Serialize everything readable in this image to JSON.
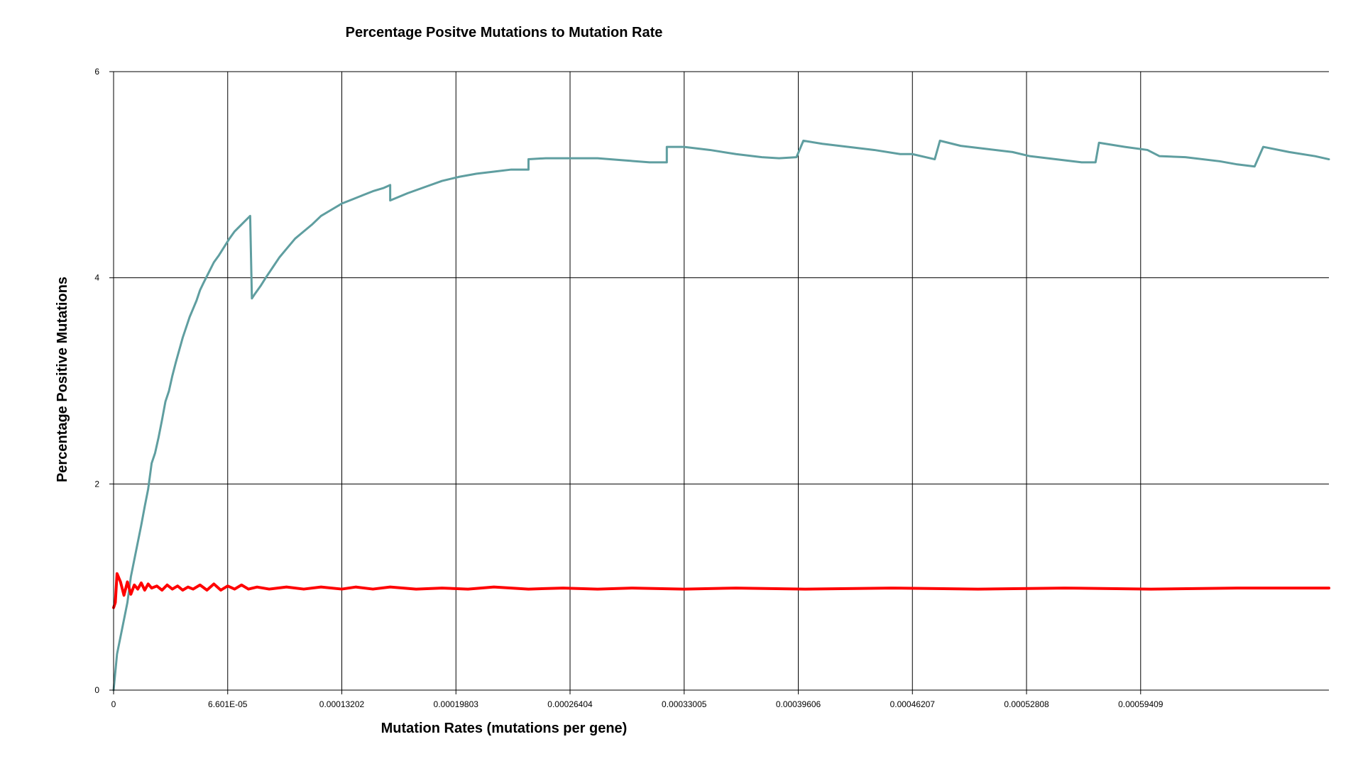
{
  "chart_data": {
    "type": "line",
    "title": "Percentage Positve Mutations to Mutation Rate",
    "xlabel": "Mutation Rates (mutations per gene)",
    "ylabel": "Percentage Positive Mutations",
    "xlim": [
      0,
      0.000703
    ],
    "ylim": [
      0,
      6
    ],
    "grid": true,
    "x_ticks": [
      {
        "value": 0,
        "label": "0"
      },
      {
        "value": 6.601e-05,
        "label": "6.601E-05"
      },
      {
        "value": 0.00013202,
        "label": "0.00013202"
      },
      {
        "value": 0.00019803,
        "label": "0.00019803"
      },
      {
        "value": 0.00026404,
        "label": "0.00026404"
      },
      {
        "value": 0.00033005,
        "label": "0.00033005"
      },
      {
        "value": 0.00039606,
        "label": "0.00039606"
      },
      {
        "value": 0.00046207,
        "label": "0.00046207"
      },
      {
        "value": 0.00052808,
        "label": "0.00052808"
      },
      {
        "value": 0.00059409,
        "label": "0.00059409"
      }
    ],
    "y_ticks": [
      {
        "value": 0,
        "label": "0"
      },
      {
        "value": 2,
        "label": "2"
      },
      {
        "value": 4,
        "label": "4"
      },
      {
        "value": 6,
        "label": "6"
      }
    ],
    "series": [
      {
        "color": "#5f9ea0",
        "points": [
          [
            0,
            0.0
          ],
          [
            2e-06,
            0.35
          ],
          [
            5e-06,
            0.6
          ],
          [
            8e-06,
            0.85
          ],
          [
            1e-05,
            1.1
          ],
          [
            1.3e-05,
            1.35
          ],
          [
            1.6e-05,
            1.6
          ],
          [
            1.8e-05,
            1.78
          ],
          [
            2e-05,
            1.95
          ],
          [
            2.2e-05,
            2.2
          ],
          [
            2.4e-05,
            2.3
          ],
          [
            2.6e-05,
            2.45
          ],
          [
            2.8e-05,
            2.62
          ],
          [
            3e-05,
            2.8
          ],
          [
            3.2e-05,
            2.9
          ],
          [
            3.4e-05,
            3.05
          ],
          [
            3.6e-05,
            3.18
          ],
          [
            3.8e-05,
            3.3
          ],
          [
            4e-05,
            3.42
          ],
          [
            4.2e-05,
            3.52
          ],
          [
            4.4e-05,
            3.62
          ],
          [
            4.6e-05,
            3.7
          ],
          [
            4.8e-05,
            3.78
          ],
          [
            5e-05,
            3.88
          ],
          [
            5.2e-05,
            3.95
          ],
          [
            5.5e-05,
            4.05
          ],
          [
            5.8e-05,
            4.15
          ],
          [
            6.1e-05,
            4.22
          ],
          [
            6.4e-05,
            4.3
          ],
          [
            6.7e-05,
            4.38
          ],
          [
            7e-05,
            4.45
          ],
          [
            7.3e-05,
            4.5
          ],
          [
            7.6e-05,
            4.55
          ],
          [
            7.9e-05,
            4.6
          ],
          [
            8e-05,
            3.8
          ],
          [
            8.2e-05,
            3.85
          ],
          [
            8.5e-05,
            3.92
          ],
          [
            8.8e-05,
            4.0
          ],
          [
            9.2e-05,
            4.1
          ],
          [
            9.6e-05,
            4.2
          ],
          [
            0.0001,
            4.28
          ],
          [
            0.000105,
            4.38
          ],
          [
            0.00011,
            4.45
          ],
          [
            0.000115,
            4.52
          ],
          [
            0.00012,
            4.6
          ],
          [
            0.000126,
            4.66
          ],
          [
            0.000132,
            4.72
          ],
          [
            0.000138,
            4.76
          ],
          [
            0.000144,
            4.8
          ],
          [
            0.00015,
            4.84
          ],
          [
            0.000156,
            4.87
          ],
          [
            0.00016,
            4.9
          ],
          [
            0.00016,
            4.75
          ],
          [
            0.00017,
            4.82
          ],
          [
            0.00018,
            4.88
          ],
          [
            0.00019,
            4.94
          ],
          [
            0.0002,
            4.98
          ],
          [
            0.00021,
            5.01
          ],
          [
            0.00022,
            5.03
          ],
          [
            0.00023,
            5.05
          ],
          [
            0.00024,
            5.05
          ],
          [
            0.00024,
            5.15
          ],
          [
            0.00025,
            5.16
          ],
          [
            0.000264,
            5.16
          ],
          [
            0.00028,
            5.16
          ],
          [
            0.000295,
            5.14
          ],
          [
            0.00031,
            5.12
          ],
          [
            0.00032,
            5.12
          ],
          [
            0.00032,
            5.27
          ],
          [
            0.00033,
            5.27
          ],
          [
            0.000345,
            5.24
          ],
          [
            0.00036,
            5.2
          ],
          [
            0.000375,
            5.17
          ],
          [
            0.000385,
            5.16
          ],
          [
            0.000395,
            5.17
          ],
          [
            0.000399,
            5.33
          ],
          [
            0.00041,
            5.3
          ],
          [
            0.000425,
            5.27
          ],
          [
            0.00044,
            5.24
          ],
          [
            0.000455,
            5.2
          ],
          [
            0.000462,
            5.2
          ],
          [
            0.000475,
            5.15
          ],
          [
            0.000478,
            5.33
          ],
          [
            0.00049,
            5.28
          ],
          [
            0.000505,
            5.25
          ],
          [
            0.00052,
            5.22
          ],
          [
            0.00053,
            5.18
          ],
          [
            0.000545,
            5.15
          ],
          [
            0.00056,
            5.12
          ],
          [
            0.000568,
            5.12
          ],
          [
            0.00057,
            5.31
          ],
          [
            0.000585,
            5.27
          ],
          [
            0.000598,
            5.24
          ],
          [
            0.000605,
            5.18
          ],
          [
            0.00062,
            5.17
          ],
          [
            0.00064,
            5.13
          ],
          [
            0.00065,
            5.1
          ],
          [
            0.00066,
            5.08
          ],
          [
            0.000665,
            5.27
          ],
          [
            0.00068,
            5.22
          ],
          [
            0.000695,
            5.18
          ],
          [
            0.000703,
            5.15
          ]
        ]
      },
      {
        "color": "#ff0000",
        "points": [
          [
            0,
            0.8
          ],
          [
            1e-06,
            0.85
          ],
          [
            2e-06,
            1.13
          ],
          [
            4e-06,
            1.05
          ],
          [
            6e-06,
            0.92
          ],
          [
            8e-06,
            1.05
          ],
          [
            1e-05,
            0.93
          ],
          [
            1.2e-05,
            1.02
          ],
          [
            1.4e-05,
            0.98
          ],
          [
            1.6e-05,
            1.04
          ],
          [
            1.8e-05,
            0.97
          ],
          [
            2e-05,
            1.03
          ],
          [
            2.2e-05,
            0.99
          ],
          [
            2.5e-05,
            1.01
          ],
          [
            2.8e-05,
            0.97
          ],
          [
            3.1e-05,
            1.02
          ],
          [
            3.4e-05,
            0.98
          ],
          [
            3.7e-05,
            1.01
          ],
          [
            4e-05,
            0.97
          ],
          [
            4.3e-05,
            1.0
          ],
          [
            4.6e-05,
            0.98
          ],
          [
            5e-05,
            1.02
          ],
          [
            5.4e-05,
            0.97
          ],
          [
            5.8e-05,
            1.03
          ],
          [
            6.2e-05,
            0.97
          ],
          [
            6.6e-05,
            1.01
          ],
          [
            7e-05,
            0.98
          ],
          [
            7.4e-05,
            1.02
          ],
          [
            7.8e-05,
            0.98
          ],
          [
            8.3e-05,
            1.0
          ],
          [
            9e-05,
            0.98
          ],
          [
            0.0001,
            1.0
          ],
          [
            0.00011,
            0.98
          ],
          [
            0.00012,
            1.0
          ],
          [
            0.000132,
            0.98
          ],
          [
            0.00014,
            1.0
          ],
          [
            0.00015,
            0.98
          ],
          [
            0.00016,
            1.0
          ],
          [
            0.000175,
            0.98
          ],
          [
            0.00019,
            0.99
          ],
          [
            0.000205,
            0.98
          ],
          [
            0.00022,
            1.0
          ],
          [
            0.00024,
            0.98
          ],
          [
            0.00026,
            0.99
          ],
          [
            0.00028,
            0.98
          ],
          [
            0.0003,
            0.99
          ],
          [
            0.00033,
            0.98
          ],
          [
            0.00036,
            0.99
          ],
          [
            0.0004,
            0.98
          ],
          [
            0.00045,
            0.99
          ],
          [
            0.0005,
            0.98
          ],
          [
            0.00055,
            0.99
          ],
          [
            0.0006,
            0.98
          ],
          [
            0.00065,
            0.99
          ],
          [
            0.000703,
            0.99
          ]
        ]
      }
    ]
  }
}
